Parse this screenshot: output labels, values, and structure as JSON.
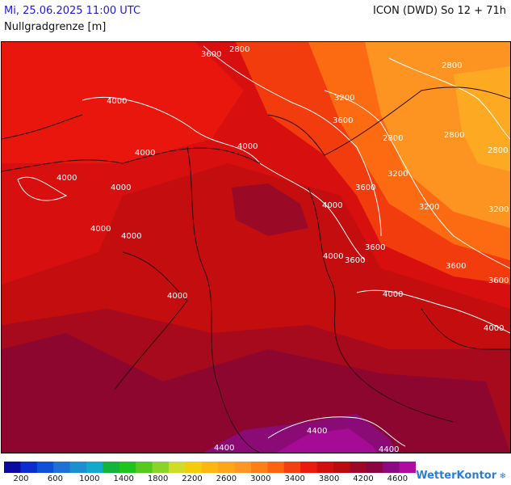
{
  "header": {
    "datetime": "Mi, 25.06.2025 11:00 UTC",
    "model_run": "ICON (DWD) So 12 + 71h",
    "parameter": "Nullgradgrenze [m]"
  },
  "map": {
    "contour_labels": [
      "2800",
      "3600",
      "2800",
      "3200",
      "3600",
      "2800",
      "2800",
      "2800",
      "4000",
      "4000",
      "4000",
      "4000",
      "4000",
      "4000",
      "3200",
      "3600",
      "3200",
      "3200",
      "4000",
      "4000",
      "4000",
      "3600",
      "3600",
      "4000",
      "3600",
      "3600",
      "4000",
      "4000",
      "4400",
      "4400",
      "4400"
    ]
  },
  "legend": {
    "colors": [
      "#0a0aa0",
      "#0c2ccf",
      "#1050d8",
      "#1f72d4",
      "#1c90cf",
      "#12aacc",
      "#12b43a",
      "#1cc41c",
      "#56c81e",
      "#8ad42a",
      "#d0dc2a",
      "#f4cc0a",
      "#fbb810",
      "#fda61a",
      "#fd9622",
      "#fd8016",
      "#fc6410",
      "#f4400e",
      "#ea1a0c",
      "#d20e0e",
      "#b80c10",
      "#9c0828",
      "#8a0640",
      "#8a0a80",
      "#b00ca0"
    ],
    "tick_labels": [
      "200",
      "600",
      "1000",
      "1400",
      "1800",
      "2200",
      "2600",
      "3000",
      "3400",
      "3800",
      "4200",
      "4600"
    ]
  },
  "brand": {
    "name": "WetterKontor"
  }
}
